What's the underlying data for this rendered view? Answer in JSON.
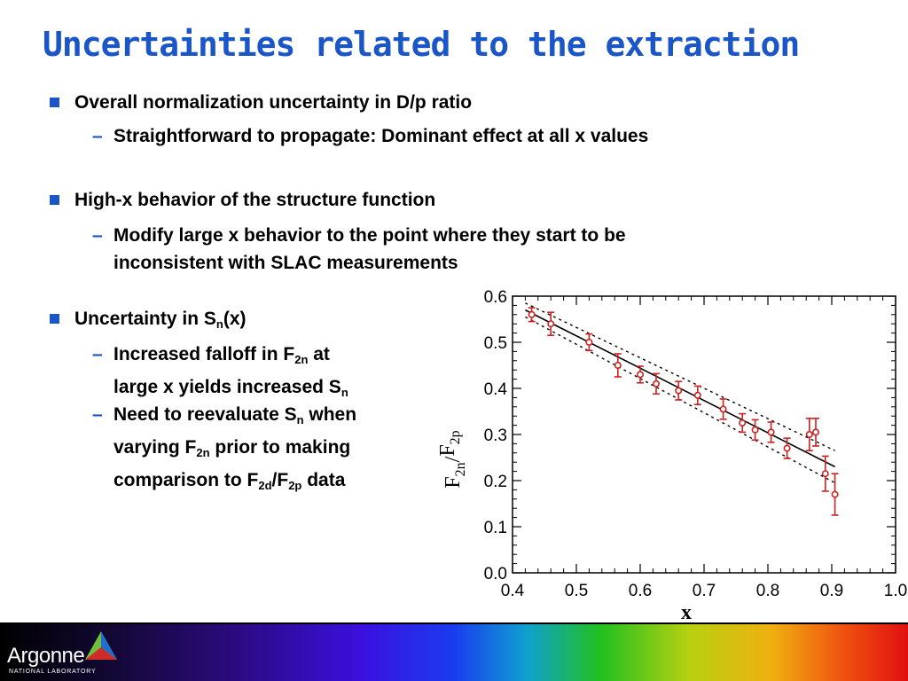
{
  "slide": {
    "title": "Uncertainties related to the extraction",
    "bullets": [
      {
        "text": "Overall normalization uncertainty in D/p ratio"
      },
      {
        "text": "Straightforward to propagate: Dominant effect at all x values"
      },
      {
        "text": "High-x behavior of the structure function"
      },
      {
        "line1": "Modify large x behavior to the point where they start to be",
        "line2": "inconsistent with SLAC measurements"
      },
      {
        "pre": "Uncertainty in S",
        "sub": "n",
        "post": "(x)"
      },
      {
        "l1_pre": "Increased falloff in F",
        "l1_sub": "2n",
        "l1_post": " at",
        "l2_pre": "large x yields increased S",
        "l2_sub": "n"
      },
      {
        "l1_pre": "Need to reevaluate S",
        "l1_sub": "n",
        "l1_post": " when",
        "l2_pre": "varying F",
        "l2_sub": "2n",
        "l2_post": " prior to making",
        "l3_pre": "comparison to F",
        "l3_sub1": "2d",
        "l3_mid": "/F",
        "l3_sub2": "2p",
        "l3_post": " data"
      }
    ]
  },
  "footer": {
    "logo_text": "Argonne",
    "logo_subtext": "NATIONAL LABORATORY"
  },
  "colors": {
    "title": "#1a56c8",
    "bullet": "#1a56c8",
    "points": "#cc2222"
  },
  "chart_data": {
    "type": "scatter",
    "xlabel": "x",
    "ylabel": "F2n/F2p",
    "xlim": [
      0.4,
      1.0
    ],
    "ylim": [
      0.0,
      0.6
    ],
    "x_ticks": [
      "0.4",
      "0.5",
      "0.6",
      "0.7",
      "0.8",
      "0.9",
      "1.0"
    ],
    "y_ticks": [
      "0.0",
      "0.1",
      "0.2",
      "0.3",
      "0.4",
      "0.5",
      "0.6"
    ],
    "points": {
      "x": [
        0.43,
        0.46,
        0.52,
        0.565,
        0.6,
        0.625,
        0.66,
        0.69,
        0.73,
        0.76,
        0.78,
        0.805,
        0.83,
        0.865,
        0.875,
        0.89,
        0.905
      ],
      "y": [
        0.56,
        0.54,
        0.5,
        0.45,
        0.43,
        0.41,
        0.395,
        0.385,
        0.355,
        0.325,
        0.31,
        0.305,
        0.27,
        0.3,
        0.305,
        0.215,
        0.17
      ],
      "err": [
        0.015,
        0.025,
        0.018,
        0.025,
        0.018,
        0.022,
        0.02,
        0.02,
        0.022,
        0.02,
        0.022,
        0.022,
        0.022,
        0.035,
        0.03,
        0.038,
        0.045
      ]
    },
    "fit_line": {
      "x": [
        0.42,
        0.905
      ],
      "y": [
        0.57,
        0.23
      ]
    },
    "band_upper": {
      "x": [
        0.42,
        0.905
      ],
      "y": [
        0.585,
        0.265
      ]
    },
    "band_lower": {
      "x": [
        0.42,
        0.905
      ],
      "y": [
        0.555,
        0.195
      ]
    }
  }
}
